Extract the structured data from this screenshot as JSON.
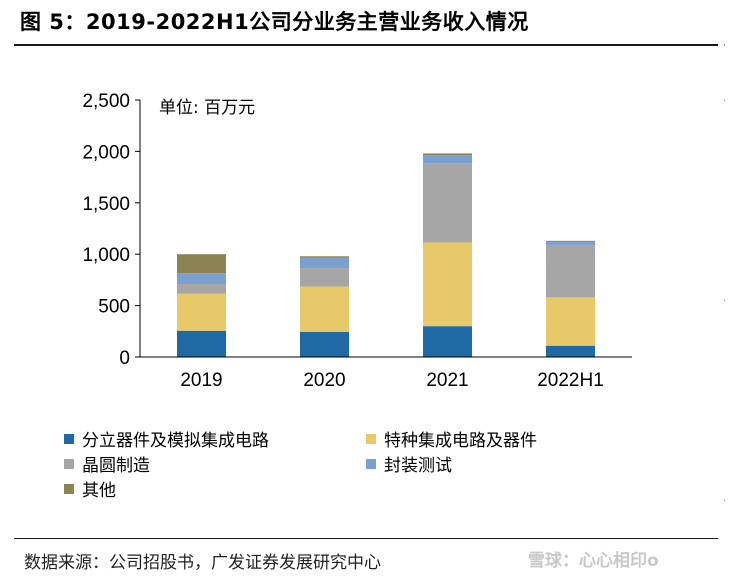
{
  "header": {
    "title": "图 5：2019-2022H1公司分业务主营业务收入情况"
  },
  "footer": {
    "source": "数据来源：公司招股书，广发证券发展研究中心",
    "watermark": "雪球：心心相印o"
  },
  "chart_data": {
    "type": "bar",
    "stacked": true,
    "unit_note": "单位: 百万元",
    "categories": [
      "2019",
      "2020",
      "2021",
      "2022H1"
    ],
    "ylim": [
      0,
      2500
    ],
    "yticks": [
      0,
      500,
      1000,
      1500,
      2000,
      2500
    ],
    "ytick_labels": [
      "0",
      "500",
      "1,000",
      "1,500",
      "2,000",
      "2,500"
    ],
    "grid": false,
    "legend_position": "bottom",
    "series": [
      {
        "name": "分立器件及模拟集成电路",
        "color": "#1f6aa5",
        "values": [
          255,
          245,
          300,
          110
        ]
      },
      {
        "name": "特种集成电路及器件",
        "color": "#e8c96a",
        "values": [
          360,
          440,
          815,
          470
        ]
      },
      {
        "name": "晶圆制造",
        "color": "#a6a6a6",
        "values": [
          95,
          180,
          770,
          510
        ]
      },
      {
        "name": "封装测试",
        "color": "#7a9fd1",
        "values": [
          105,
          100,
          80,
          30
        ]
      },
      {
        "name": "其他",
        "color": "#8b8452",
        "values": [
          185,
          15,
          15,
          10
        ]
      }
    ]
  }
}
